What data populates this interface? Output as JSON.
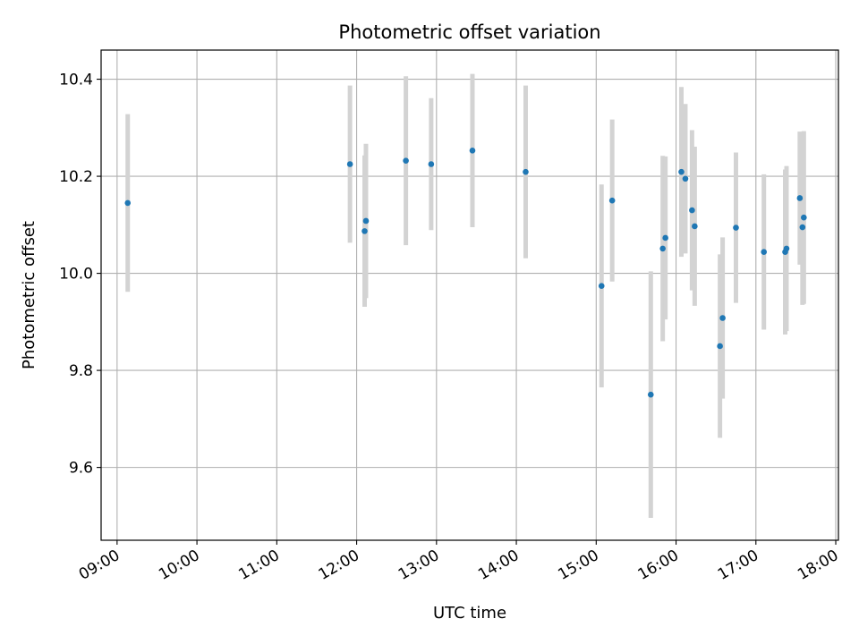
{
  "chart_data": {
    "type": "scatter",
    "title": "Photometric offset variation",
    "xlabel": "UTC time",
    "ylabel": "Photometric offset",
    "grid": true,
    "xlim": [
      "08:48",
      "18:02"
    ],
    "ylim": [
      9.45,
      10.46
    ],
    "x_ticks": [
      "09:00",
      "10:00",
      "11:00",
      "12:00",
      "13:00",
      "14:00",
      "15:00",
      "16:00",
      "17:00",
      "18:00"
    ],
    "y_ticks": [
      9.6,
      9.8,
      10.0,
      10.2,
      10.4
    ],
    "y_tick_labels": [
      "9.6",
      "9.8",
      "10.0",
      "10.2",
      "10.4"
    ],
    "colors": {
      "points": "#1f77b4",
      "errorbars": "#d3d3d3",
      "grid": "#b0b0b0"
    },
    "series": [
      {
        "points": [
          {
            "x": "09:08",
            "y": 10.145,
            "err": 0.183
          },
          {
            "x": "11:55",
            "y": 10.225,
            "err": 0.162
          },
          {
            "x": "12:06",
            "y": 10.087,
            "err": 0.156
          },
          {
            "x": "12:07",
            "y": 10.108,
            "err": 0.159
          },
          {
            "x": "12:37",
            "y": 10.232,
            "err": 0.174
          },
          {
            "x": "12:56",
            "y": 10.225,
            "err": 0.136
          },
          {
            "x": "13:27",
            "y": 10.253,
            "err": 0.158
          },
          {
            "x": "14:07",
            "y": 10.209,
            "err": 0.178
          },
          {
            "x": "15:04",
            "y": 9.974,
            "err": 0.209
          },
          {
            "x": "15:12",
            "y": 10.15,
            "err": 0.167
          },
          {
            "x": "15:41",
            "y": 9.75,
            "err": 0.254
          },
          {
            "x": "15:50",
            "y": 10.051,
            "err": 0.191
          },
          {
            "x": "15:52",
            "y": 10.073,
            "err": 0.168
          },
          {
            "x": "16:04",
            "y": 10.209,
            "err": 0.175
          },
          {
            "x": "16:07",
            "y": 10.195,
            "err": 0.154
          },
          {
            "x": "16:12",
            "y": 10.13,
            "err": 0.165
          },
          {
            "x": "16:14",
            "y": 10.097,
            "err": 0.164
          },
          {
            "x": "16:33",
            "y": 9.85,
            "err": 0.189
          },
          {
            "x": "16:35",
            "y": 9.908,
            "err": 0.166
          },
          {
            "x": "16:45",
            "y": 10.094,
            "err": 0.155
          },
          {
            "x": "17:06",
            "y": 10.044,
            "err": 0.16
          },
          {
            "x": "17:22",
            "y": 10.044,
            "err": 0.17
          },
          {
            "x": "17:23",
            "y": 10.051,
            "err": 0.17
          },
          {
            "x": "17:33",
            "y": 10.155,
            "err": 0.137
          },
          {
            "x": "17:35",
            "y": 10.095,
            "err": 0.16
          },
          {
            "x": "17:36",
            "y": 10.115,
            "err": 0.178
          }
        ]
      }
    ]
  }
}
